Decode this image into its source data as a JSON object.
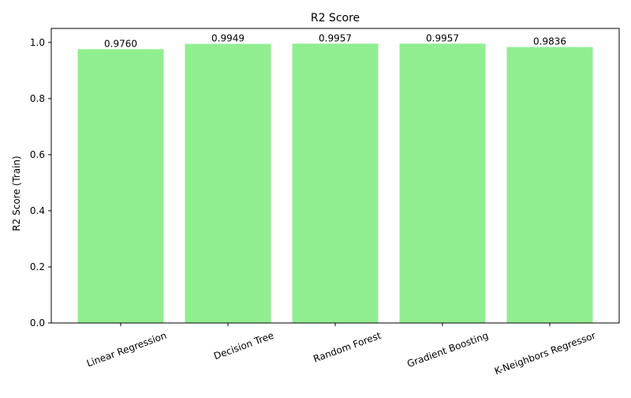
{
  "chart_data": {
    "type": "bar",
    "title": "R2 Score",
    "xlabel": "",
    "ylabel": "R2 Score (Train)",
    "categories": [
      "Linear Regression",
      "Decision Tree",
      "Random Forest",
      "Gradient Boosting",
      "K-Neighbors Regressor"
    ],
    "values": [
      0.976,
      0.9949,
      0.9957,
      0.9957,
      0.9836
    ],
    "value_labels": [
      "0.9760",
      "0.9949",
      "0.9957",
      "0.9957",
      "0.9836"
    ],
    "yticks": [
      "0.0",
      "0.2",
      "0.4",
      "0.6",
      "0.8",
      "1.0"
    ],
    "ylim": [
      0,
      1.05
    ],
    "grid": false,
    "bar_color": "#90ee90"
  }
}
